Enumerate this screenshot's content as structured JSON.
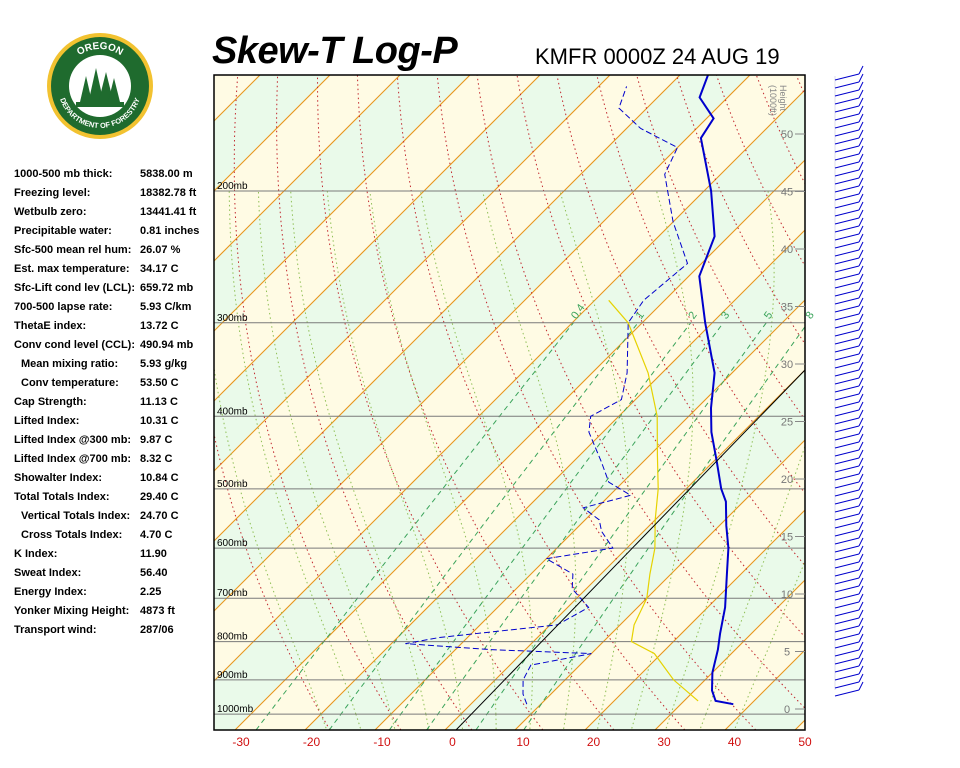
{
  "header": {
    "title": "Skew-T Log-P",
    "station": "KMFR 0000Z 24 AUG 19"
  },
  "logo": {
    "top_text": "OREGON",
    "bottom_text": "DEPARTMENT OF FORESTRY",
    "colors": {
      "ring": "#1f6b2e",
      "gold": "#f2c230",
      "tree": "#1f6b2e"
    }
  },
  "indices": [
    {
      "label": "1000-500 mb thick:",
      "value": "5838.00 m",
      "indent": false
    },
    {
      "label": "Freezing level:",
      "value": "18382.78 ft",
      "indent": false
    },
    {
      "label": "Wetbulb zero:",
      "value": "13441.41 ft",
      "indent": false
    },
    {
      "label": "Precipitable water:",
      "value": "0.81 inches",
      "indent": false
    },
    {
      "label": "Sfc-500 mean rel hum:",
      "value": "26.07 %",
      "indent": false
    },
    {
      "label": "Est. max temperature:",
      "value": "34.17 C",
      "indent": false
    },
    {
      "label": "Sfc-Lift cond lev (LCL):",
      "value": "659.72 mb",
      "indent": false
    },
    {
      "label": "700-500 lapse rate:",
      "value": "5.93 C/km",
      "indent": false
    },
    {
      "label": "ThetaE index:",
      "value": "13.72 C",
      "indent": false
    },
    {
      "label": "Conv cond level (CCL):",
      "value": "490.94 mb",
      "indent": false
    },
    {
      "label": "Mean mixing ratio:",
      "value": "5.93 g/kg",
      "indent": true
    },
    {
      "label": "Conv temperature:",
      "value": "53.50 C",
      "indent": true
    },
    {
      "label": "Cap Strength:",
      "value": "11.13 C",
      "indent": false
    },
    {
      "label": "Lifted Index:",
      "value": "10.31 C",
      "indent": false
    },
    {
      "label": "Lifted Index @300 mb:",
      "value": "9.87 C",
      "indent": false
    },
    {
      "label": "Lifted Index @700 mb:",
      "value": "8.32 C",
      "indent": false
    },
    {
      "label": "Showalter Index:",
      "value": "10.84 C",
      "indent": false
    },
    {
      "label": "Total Totals Index:",
      "value": "29.40 C",
      "indent": false
    },
    {
      "label": "Vertical Totals Index:",
      "value": "24.70 C",
      "indent": true
    },
    {
      "label": "Cross Totals Index:",
      "value": "4.70 C",
      "indent": true
    },
    {
      "label": "K Index:",
      "value": "11.90",
      "indent": false
    },
    {
      "label": "Sweat Index:",
      "value": "56.40",
      "indent": false
    },
    {
      "label": "Energy Index:",
      "value": "2.25",
      "indent": false
    },
    {
      "label": "Yonker Mixing Height:",
      "value": "4873 ft",
      "indent": false
    },
    {
      "label": "Transport wind:",
      "value": "287/06",
      "indent": false
    }
  ],
  "chart_data": {
    "type": "line",
    "title": "Skew-T Log-P",
    "x_label": "",
    "y_label": "",
    "temperature_ticks": [
      "-30",
      "-20",
      "-10",
      "0",
      "10",
      "20",
      "30",
      "40",
      "50"
    ],
    "temperature_values": [
      -30,
      -20,
      -10,
      0,
      10,
      20,
      30,
      40,
      50
    ],
    "xlim": [
      -30,
      50
    ],
    "pressure_levels": [
      {
        "value": 200,
        "label": "200mb"
      },
      {
        "value": 300,
        "label": "300mb"
      },
      {
        "value": 400,
        "label": "400mb"
      },
      {
        "value": 500,
        "label": "500mb"
      },
      {
        "value": 600,
        "label": "600mb"
      },
      {
        "value": 700,
        "label": "700mb"
      },
      {
        "value": 800,
        "label": "800mb"
      },
      {
        "value": 900,
        "label": "900mb"
      },
      {
        "value": 1000,
        "label": "1000mb"
      }
    ],
    "ylim_mb": [
      1050,
      140
    ],
    "height_axis": {
      "title": "Height\n(1000ft)",
      "ticks": [
        {
          "value": 0,
          "label": "0"
        },
        {
          "value": 5,
          "label": "5"
        },
        {
          "value": 10,
          "label": "10"
        },
        {
          "value": 15,
          "label": "15"
        },
        {
          "value": 20,
          "label": "20"
        },
        {
          "value": 25,
          "label": "25"
        },
        {
          "value": 30,
          "label": "30"
        },
        {
          "value": 35,
          "label": "35"
        },
        {
          "value": 40,
          "label": "40"
        },
        {
          "value": 45,
          "label": "45"
        },
        {
          "value": 50,
          "label": "50"
        }
      ]
    },
    "mixing_ratio_labels": [
      "0.4",
      "1",
      "2",
      "3",
      "5",
      "8"
    ],
    "mixing_ratio_values": [
      0.4,
      1,
      2,
      3,
      5,
      8
    ],
    "mixing_ratio_label_pressure": 300,
    "series": [
      {
        "color": "#0000cc",
        "style": "solid",
        "values": [
          {
            "p": 970,
            "t": 37.5
          },
          {
            "p": 960,
            "t": 34.5
          },
          {
            "p": 930,
            "t": 32.5
          },
          {
            "p": 880,
            "t": 30.0
          },
          {
            "p": 820,
            "t": 27.5
          },
          {
            "p": 780,
            "t": 25.5
          },
          {
            "p": 720,
            "t": 22.5
          },
          {
            "p": 650,
            "t": 18.0
          },
          {
            "p": 600,
            "t": 14.5
          },
          {
            "p": 560,
            "t": 11.0
          },
          {
            "p": 520,
            "t": 7.5
          },
          {
            "p": 500,
            "t": 5.0
          },
          {
            "p": 460,
            "t": 0.5
          },
          {
            "p": 420,
            "t": -4.5
          },
          {
            "p": 390,
            "t": -8.0
          },
          {
            "p": 350,
            "t": -12.5
          },
          {
            "p": 300,
            "t": -21.0
          },
          {
            "p": 260,
            "t": -28.5
          },
          {
            "p": 230,
            "t": -32.0
          },
          {
            "p": 200,
            "t": -39.0
          },
          {
            "p": 170,
            "t": -48.0
          },
          {
            "p": 160,
            "t": -49.0
          },
          {
            "p": 150,
            "t": -54.0
          },
          {
            "p": 140,
            "t": -56.0
          }
        ]
      },
      {
        "color": "#0000cc",
        "style": "dashed",
        "values": [
          {
            "p": 970,
            "t": 8.0
          },
          {
            "p": 940,
            "t": 6.0
          },
          {
            "p": 900,
            "t": 4.0
          },
          {
            "p": 860,
            "t": 3.0
          },
          {
            "p": 830,
            "t": 10.0
          },
          {
            "p": 820,
            "t": -5.0
          },
          {
            "p": 805,
            "t": -18.0
          },
          {
            "p": 790,
            "t": -14.0
          },
          {
            "p": 760,
            "t": 1.0
          },
          {
            "p": 720,
            "t": 3.0
          },
          {
            "p": 680,
            "t": -2.0
          },
          {
            "p": 650,
            "t": -4.0
          },
          {
            "p": 620,
            "t": -10.0
          },
          {
            "p": 600,
            "t": -2.0
          },
          {
            "p": 570,
            "t": -6.0
          },
          {
            "p": 550,
            "t": -8.0
          },
          {
            "p": 530,
            "t": -12.0
          },
          {
            "p": 510,
            "t": -7.0
          },
          {
            "p": 490,
            "t": -12.0
          },
          {
            "p": 460,
            "t": -16.0
          },
          {
            "p": 420,
            "t": -22.0
          },
          {
            "p": 400,
            "t": -24.0
          },
          {
            "p": 380,
            "t": -22.0
          },
          {
            "p": 350,
            "t": -25.0
          },
          {
            "p": 300,
            "t": -32.0
          },
          {
            "p": 280,
            "t": -33.0
          },
          {
            "p": 250,
            "t": -32.0
          },
          {
            "p": 220,
            "t": -40.0
          },
          {
            "p": 190,
            "t": -48.0
          },
          {
            "p": 175,
            "t": -50.0
          },
          {
            "p": 165,
            "t": -58.0
          },
          {
            "p": 155,
            "t": -64.0
          },
          {
            "p": 145,
            "t": -66.0
          }
        ]
      },
      {
        "color": "#e6d200",
        "style": "solid",
        "values": [
          {
            "p": 960,
            "t": 32.0
          },
          {
            "p": 900,
            "t": 25.5
          },
          {
            "p": 830,
            "t": 19.0
          },
          {
            "p": 800,
            "t": 14.0
          },
          {
            "p": 760,
            "t": 12.0
          },
          {
            "p": 700,
            "t": 10.0
          },
          {
            "p": 650,
            "t": 7.0
          },
          {
            "p": 600,
            "t": 4.0
          },
          {
            "p": 550,
            "t": 0.0
          },
          {
            "p": 500,
            "t": -4.0
          },
          {
            "p": 450,
            "t": -9.0
          },
          {
            "p": 400,
            "t": -14.5
          },
          {
            "p": 350,
            "t": -22.0
          },
          {
            "p": 300,
            "t": -32.0
          },
          {
            "p": 280,
            "t": -38.0
          }
        ]
      }
    ]
  }
}
